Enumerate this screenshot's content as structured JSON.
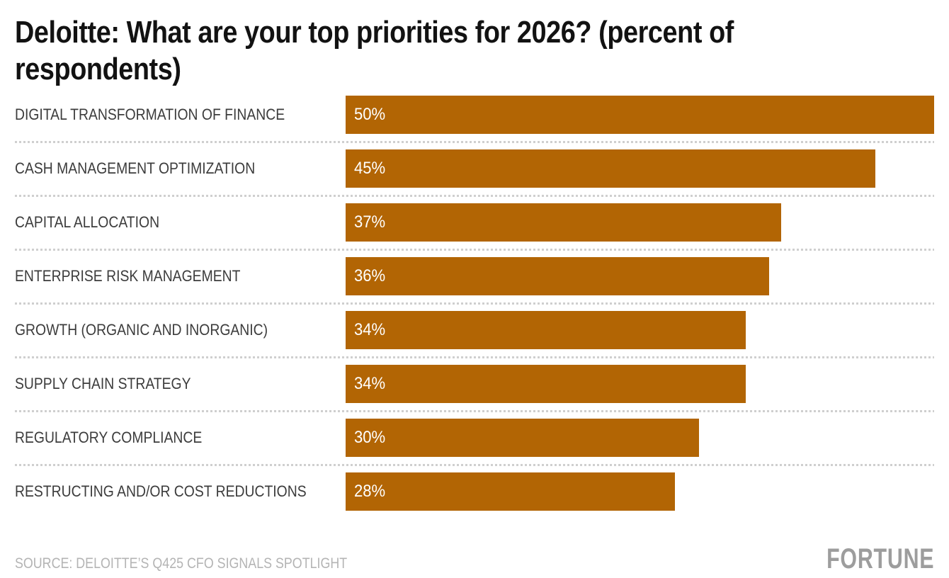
{
  "header": {
    "title_line1": "Deloitte: What are your top priorities for 2026? (percent of",
    "title_line2": "respondents)"
  },
  "chart_data": {
    "type": "bar",
    "orientation": "horizontal",
    "title": "Deloitte: What are your top priorities for 2026? (percent of respondents)",
    "categories": [
      "DIGITAL TRANSFORMATION OF FINANCE",
      "CASH MANAGEMENT OPTIMIZATION",
      "CAPITAL ALLOCATION",
      "ENTERPRISE RISK MANAGEMENT",
      "GROWTH (ORGANIC AND INORGANIC)",
      "SUPPLY CHAIN STRATEGY",
      "REGULATORY COMPLIANCE",
      "RESTRUCTING AND/OR COST REDUCTIONS"
    ],
    "values": [
      50,
      45,
      37,
      36,
      34,
      34,
      30,
      28
    ],
    "value_labels": [
      "50%",
      "45%",
      "37%",
      "36%",
      "34%",
      "34%",
      "30%",
      "28%"
    ],
    "xlim": [
      0,
      50
    ],
    "unit": "percent of respondents",
    "grid": false,
    "legend": false,
    "value_label_position": "inside-start"
  },
  "footer": {
    "source": "SOURCE: DELOITTE’S Q425 CFO SIGNALS SPOTLIGHT",
    "brand": "FORTUNE"
  },
  "colors": {
    "bg": "#FFFFFF",
    "bar": "#B26504",
    "title_text": "#121212",
    "label_text": "#3C3C3C",
    "value_text": "#FFFFFF",
    "separator": "#CFCFCF",
    "source_text": "#B4B4B4",
    "brand_text": "#9D9D9D"
  }
}
